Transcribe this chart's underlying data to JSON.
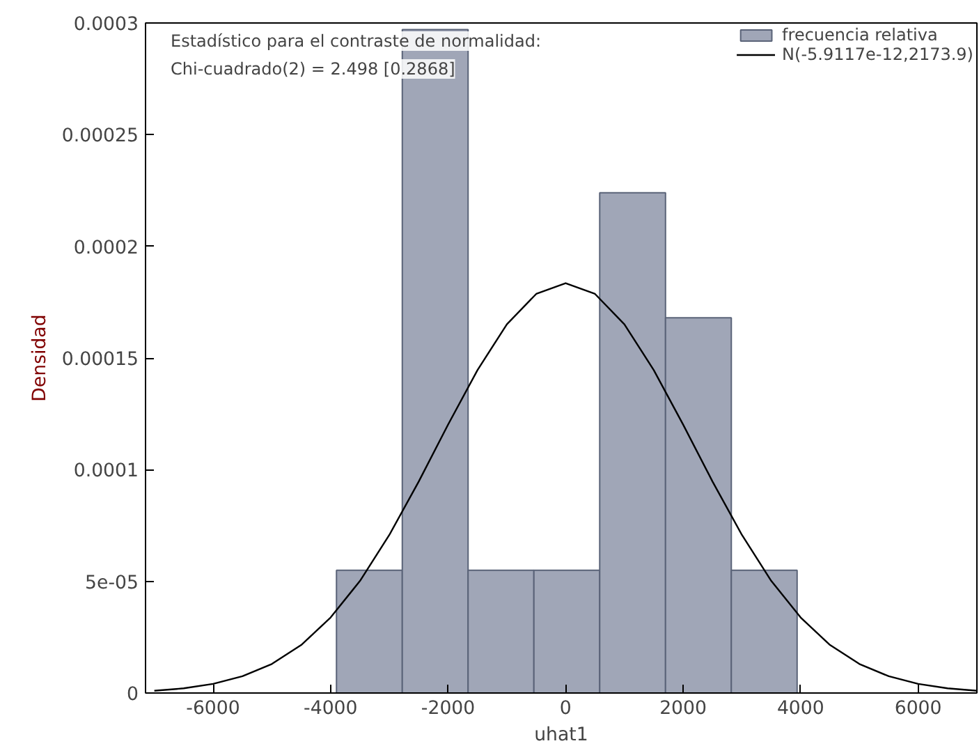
{
  "chart_data": {
    "type": "histogram",
    "xlabel": "uhat1",
    "ylabel": "Densidad",
    "annotations": [
      "Estadístico para el contraste de normalidad:",
      "Chi-cuadrado(2) = 2.498 [0.2868]"
    ],
    "series": [
      {
        "name": "frecuencia relativa",
        "color": "#a0a6b7",
        "bins": [
          -3900,
          -2780,
          -1660,
          -540,
          580,
          1700,
          2820,
          3940
        ],
        "values": [
          5.5e-05,
          0.000297,
          5.5e-05,
          5.5e-05,
          0.000224,
          0.000168,
          5.5e-05
        ]
      },
      {
        "name": "N(-5.9117e-12,2173.9)",
        "type": "line",
        "color": "#000000",
        "x": [
          -7000,
          -6500,
          -6000,
          -5500,
          -5000,
          -4500,
          -4000,
          -3500,
          -3000,
          -2500,
          -2000,
          -1500,
          -1000,
          -500,
          0,
          500,
          1000,
          1500,
          2000,
          2500,
          3000,
          3500,
          4000,
          4500,
          5000,
          5500,
          6000,
          6500,
          7000
        ],
        "values": [
          1e-06,
          2.1e-06,
          4.1e-06,
          7.5e-06,
          1.3e-05,
          2.15e-05,
          3.38e-05,
          5.02e-05,
          7.08e-05,
          9.47e-05,
          0.0001202,
          0.0001446,
          0.0001651,
          0.0001787,
          0.0001835,
          0.0001787,
          0.0001651,
          0.0001446,
          0.0001202,
          9.47e-05,
          7.08e-05,
          5.02e-05,
          3.38e-05,
          2.15e-05,
          1.3e-05,
          7.5e-06,
          4.1e-06,
          2.1e-06,
          1e-06
        ]
      }
    ],
    "xlim": [
      -7150,
      7000
    ],
    "ylim": [
      0,
      0.0003
    ],
    "xticks": [
      -6000,
      -4000,
      -2000,
      0,
      2000,
      4000,
      6000
    ],
    "yticks": [
      0,
      {
        "value": 5e-05,
        "label": "5e-05"
      },
      0.0001,
      0.00015,
      0.0002,
      0.00025,
      0.0003
    ],
    "legend": "top right",
    "grid": false
  }
}
